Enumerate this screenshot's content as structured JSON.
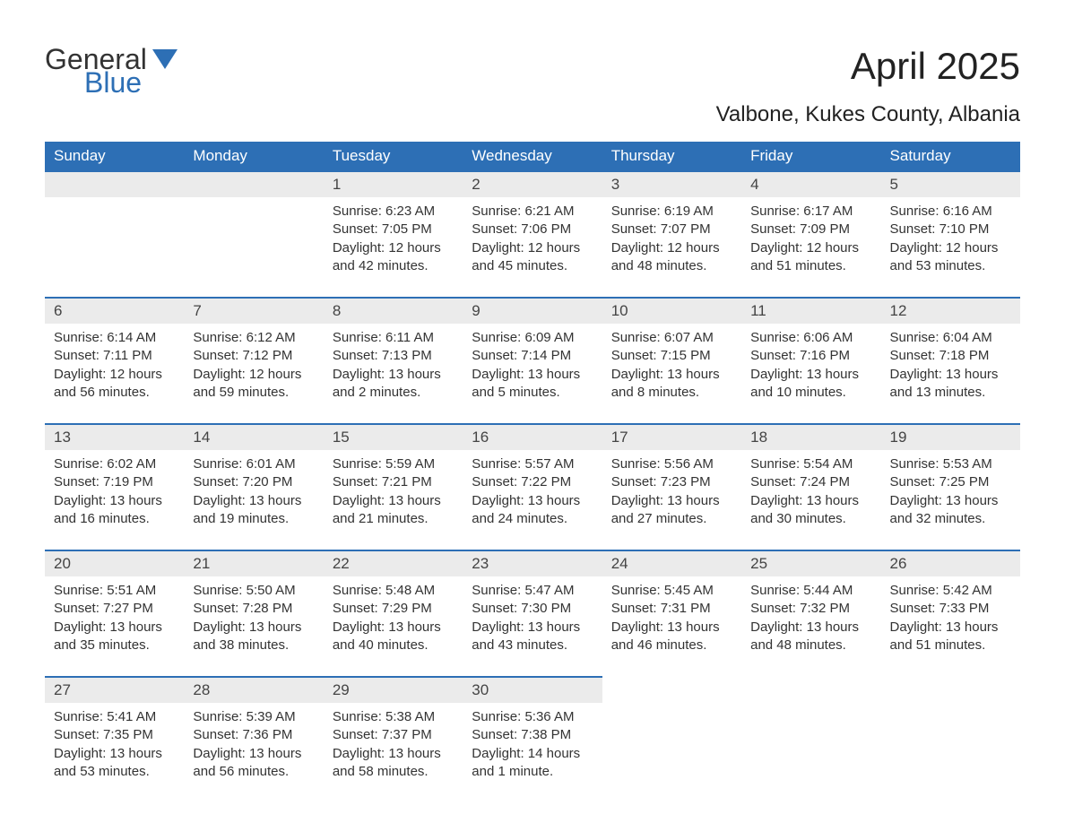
{
  "logo": {
    "top": "General",
    "bottom": "Blue"
  },
  "title": "April 2025",
  "subtitle": "Valbone, Kukes County, Albania",
  "colors": {
    "header_bg": "#2d6fb5",
    "header_text": "#ffffff",
    "daynum_bg": "#ebebeb",
    "border_top": "#2d6fb5",
    "text": "#333333",
    "logo_blue": "#2d6fb5",
    "page_bg": "#ffffff"
  },
  "weekdays": [
    "Sunday",
    "Monday",
    "Tuesday",
    "Wednesday",
    "Thursday",
    "Friday",
    "Saturday"
  ],
  "weeks": [
    {
      "nums": [
        "",
        "",
        "1",
        "2",
        "3",
        "4",
        "5"
      ],
      "cells": [
        "",
        "",
        "Sunrise: 6:23 AM\nSunset: 7:05 PM\nDaylight: 12 hours and 42 minutes.",
        "Sunrise: 6:21 AM\nSunset: 7:06 PM\nDaylight: 12 hours and 45 minutes.",
        "Sunrise: 6:19 AM\nSunset: 7:07 PM\nDaylight: 12 hours and 48 minutes.",
        "Sunrise: 6:17 AM\nSunset: 7:09 PM\nDaylight: 12 hours and 51 minutes.",
        "Sunrise: 6:16 AM\nSunset: 7:10 PM\nDaylight: 12 hours and 53 minutes."
      ]
    },
    {
      "nums": [
        "6",
        "7",
        "8",
        "9",
        "10",
        "11",
        "12"
      ],
      "cells": [
        "Sunrise: 6:14 AM\nSunset: 7:11 PM\nDaylight: 12 hours and 56 minutes.",
        "Sunrise: 6:12 AM\nSunset: 7:12 PM\nDaylight: 12 hours and 59 minutes.",
        "Sunrise: 6:11 AM\nSunset: 7:13 PM\nDaylight: 13 hours and 2 minutes.",
        "Sunrise: 6:09 AM\nSunset: 7:14 PM\nDaylight: 13 hours and 5 minutes.",
        "Sunrise: 6:07 AM\nSunset: 7:15 PM\nDaylight: 13 hours and 8 minutes.",
        "Sunrise: 6:06 AM\nSunset: 7:16 PM\nDaylight: 13 hours and 10 minutes.",
        "Sunrise: 6:04 AM\nSunset: 7:18 PM\nDaylight: 13 hours and 13 minutes."
      ]
    },
    {
      "nums": [
        "13",
        "14",
        "15",
        "16",
        "17",
        "18",
        "19"
      ],
      "cells": [
        "Sunrise: 6:02 AM\nSunset: 7:19 PM\nDaylight: 13 hours and 16 minutes.",
        "Sunrise: 6:01 AM\nSunset: 7:20 PM\nDaylight: 13 hours and 19 minutes.",
        "Sunrise: 5:59 AM\nSunset: 7:21 PM\nDaylight: 13 hours and 21 minutes.",
        "Sunrise: 5:57 AM\nSunset: 7:22 PM\nDaylight: 13 hours and 24 minutes.",
        "Sunrise: 5:56 AM\nSunset: 7:23 PM\nDaylight: 13 hours and 27 minutes.",
        "Sunrise: 5:54 AM\nSunset: 7:24 PM\nDaylight: 13 hours and 30 minutes.",
        "Sunrise: 5:53 AM\nSunset: 7:25 PM\nDaylight: 13 hours and 32 minutes."
      ]
    },
    {
      "nums": [
        "20",
        "21",
        "22",
        "23",
        "24",
        "25",
        "26"
      ],
      "cells": [
        "Sunrise: 5:51 AM\nSunset: 7:27 PM\nDaylight: 13 hours and 35 minutes.",
        "Sunrise: 5:50 AM\nSunset: 7:28 PM\nDaylight: 13 hours and 38 minutes.",
        "Sunrise: 5:48 AM\nSunset: 7:29 PM\nDaylight: 13 hours and 40 minutes.",
        "Sunrise: 5:47 AM\nSunset: 7:30 PM\nDaylight: 13 hours and 43 minutes.",
        "Sunrise: 5:45 AM\nSunset: 7:31 PM\nDaylight: 13 hours and 46 minutes.",
        "Sunrise: 5:44 AM\nSunset: 7:32 PM\nDaylight: 13 hours and 48 minutes.",
        "Sunrise: 5:42 AM\nSunset: 7:33 PM\nDaylight: 13 hours and 51 minutes."
      ]
    },
    {
      "nums": [
        "27",
        "28",
        "29",
        "30",
        "",
        "",
        ""
      ],
      "cells": [
        "Sunrise: 5:41 AM\nSunset: 7:35 PM\nDaylight: 13 hours and 53 minutes.",
        "Sunrise: 5:39 AM\nSunset: 7:36 PM\nDaylight: 13 hours and 56 minutes.",
        "Sunrise: 5:38 AM\nSunset: 7:37 PM\nDaylight: 13 hours and 58 minutes.",
        "Sunrise: 5:36 AM\nSunset: 7:38 PM\nDaylight: 14 hours and 1 minute.",
        "",
        "",
        ""
      ]
    }
  ]
}
